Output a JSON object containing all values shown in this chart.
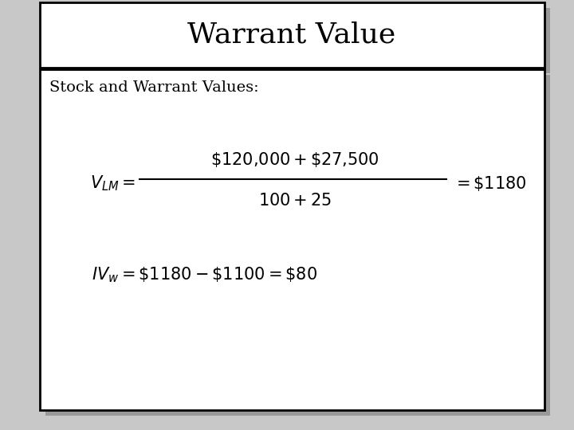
{
  "title": "Warrant Value",
  "subtitle": "Stock and Warrant Values:",
  "bg_color": "#c8c8c8",
  "box_color": "#ffffff",
  "text_color": "#000000",
  "title_fontsize": 26,
  "subtitle_fontsize": 14,
  "formula_fontsize": 15,
  "shadow_color": "#999999"
}
